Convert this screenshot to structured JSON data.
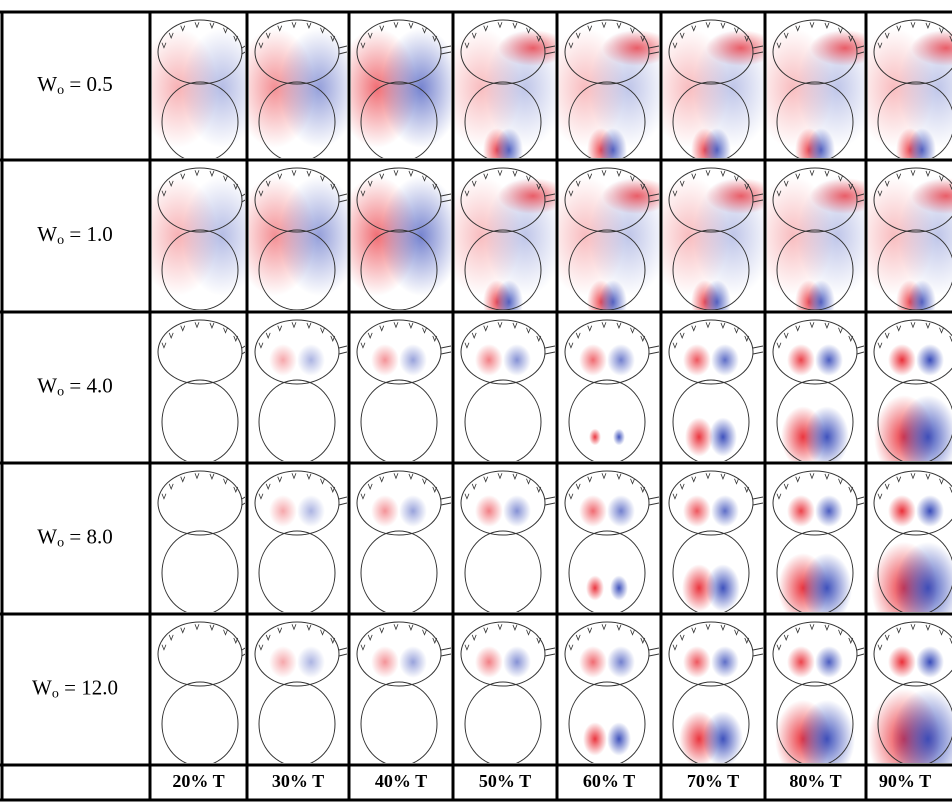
{
  "table": {
    "rows": [
      {
        "symbol": "W",
        "sub": "o",
        "eq": " = 0.5"
      },
      {
        "symbol": "W",
        "sub": "o",
        "eq": " = 1.0"
      },
      {
        "symbol": "W",
        "sub": "o",
        "eq": " = 4.0"
      },
      {
        "symbol": "W",
        "sub": "o",
        "eq": " = 8.0"
      },
      {
        "symbol": "W",
        "sub": "o",
        "eq": " = 12.0"
      }
    ],
    "columns": [
      "20% T",
      "30% T",
      "40% T",
      "50% T",
      "60% T",
      "70% T",
      "80% T",
      "90% T"
    ]
  }
}
